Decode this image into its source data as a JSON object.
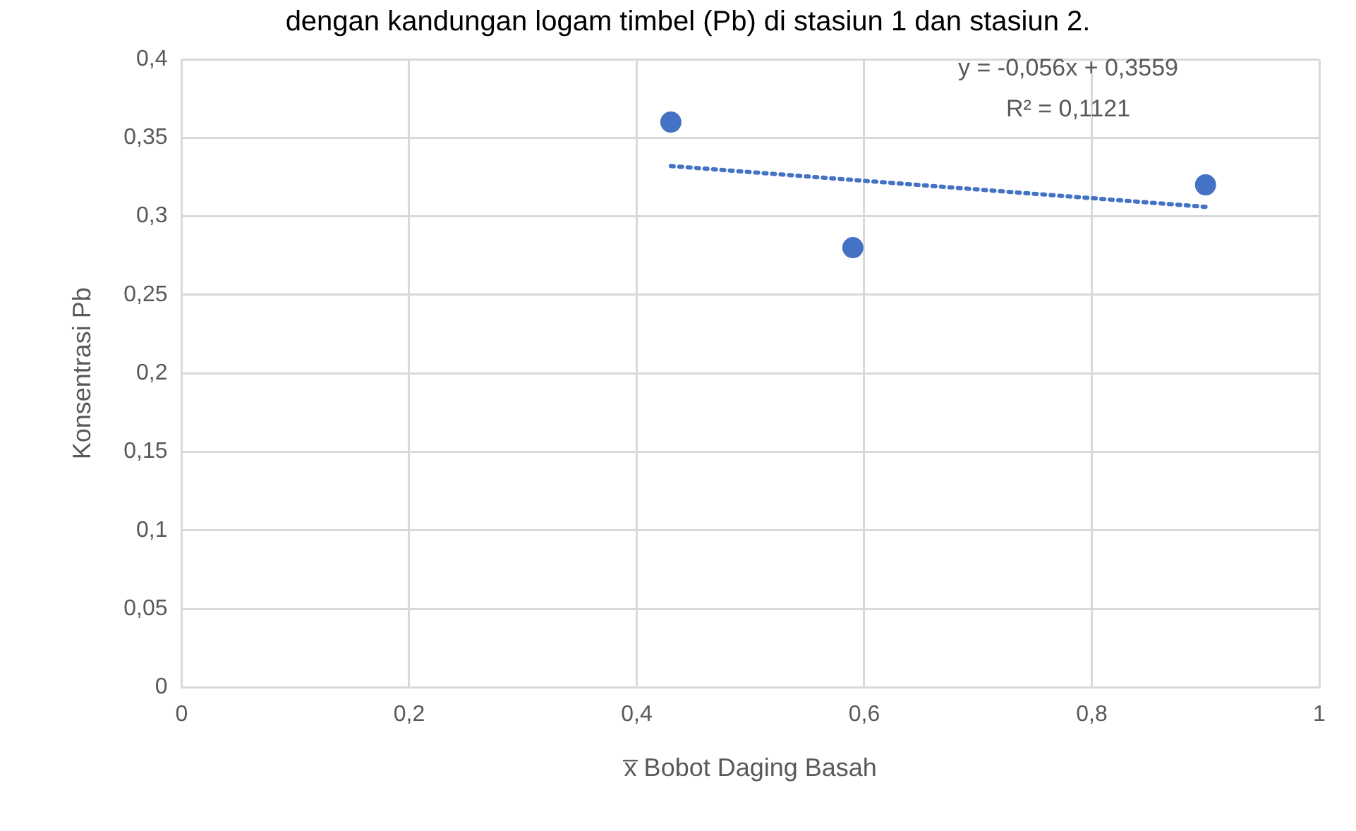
{
  "chart_data": {
    "type": "scatter",
    "title": "dengan kandungan logam timbel (Pb) di stasiun 1 dan stasiun 2.",
    "xlabel": "x̅ Bobot Daging Basah",
    "ylabel": "Konsentrasi Pb",
    "annotations": [
      "y = -0,056x + 0,3559",
      "R² = 0,1121"
    ],
    "series": [
      {
        "color": "#4472c4",
        "marker": "circle",
        "x": [
          0.43,
          0.59,
          0.9
        ],
        "values": [
          0.36,
          0.28,
          0.32
        ]
      },
      {
        "type": "line",
        "color": "#4472c4",
        "marker": "none",
        "line_style": "dotted",
        "x": [
          0.43,
          0.9
        ],
        "values": [
          0.332,
          0.306
        ]
      }
    ],
    "xlim": [
      0,
      1
    ],
    "ylim": [
      0,
      0.4
    ],
    "xticks": [
      0,
      {
        "value": 0.2,
        "label": "0,2"
      },
      {
        "value": 0.4,
        "label": "0,4"
      },
      {
        "value": 0.6,
        "label": "0,6"
      },
      {
        "value": 0.8,
        "label": "0,8"
      },
      1
    ],
    "yticks": [
      0,
      {
        "value": 0.05,
        "label": "0,05"
      },
      {
        "value": 0.1,
        "label": "0,1"
      },
      {
        "value": 0.15,
        "label": "0,15"
      },
      {
        "value": 0.2,
        "label": "0,2"
      },
      {
        "value": 0.25,
        "label": "0,25"
      },
      {
        "value": 0.3,
        "label": "0,3"
      },
      {
        "value": 0.35,
        "label": "0,35"
      },
      {
        "value": 0.4,
        "label": "0,4"
      }
    ],
    "grid": true,
    "legend": false
  }
}
